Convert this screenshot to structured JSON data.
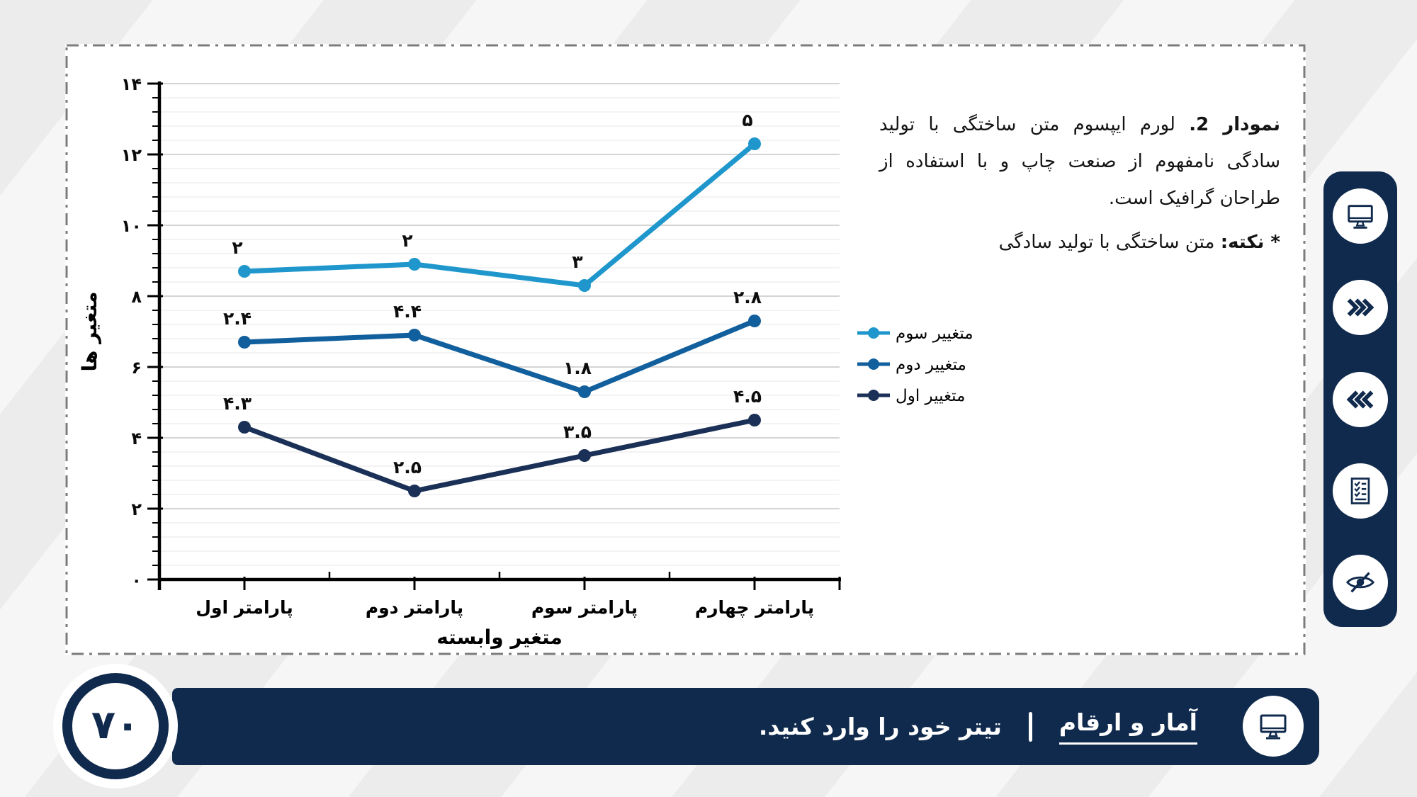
{
  "colors": {
    "navy": "#102a4d",
    "background": "#ececec",
    "panel_background": "#ffffff",
    "panel_border": "#7b7b7b",
    "grid_major": "#c6c6c6",
    "grid_minor": "#e7e7e7",
    "series_first": "#1a3056",
    "series_second": "#115f9c",
    "series_third": "#1f97cc"
  },
  "chart_data": {
    "type": "line",
    "stacked": true,
    "title": "",
    "xlabel": "متغیر وابسته",
    "ylabel": "متغیر ها",
    "categories": [
      "پارامتر اول",
      "پارامتر دوم",
      "پارامتر سوم",
      "پارامتر چهارم"
    ],
    "series": [
      {
        "name": "متغییر اول",
        "values": [
          4.3,
          2.5,
          3.5,
          4.5
        ],
        "labels": [
          "۴.۳",
          "۲.۵",
          "۳.۵",
          "۴.۵"
        ],
        "color": "#1a3056"
      },
      {
        "name": "متغییر دوم",
        "values": [
          2.4,
          4.4,
          1.8,
          2.8
        ],
        "labels": [
          "۲.۴",
          "۴.۴",
          "۱.۸",
          "۲.۸"
        ],
        "color": "#115f9c"
      },
      {
        "name": "متغییر سوم",
        "values": [
          2,
          2,
          3,
          5
        ],
        "labels": [
          "۲",
          "۲",
          "۳",
          "۵"
        ],
        "color": "#1f97cc"
      }
    ],
    "ylim": [
      0,
      14
    ],
    "y_major_step": 2,
    "y_minor_step": 0.4,
    "y_tick_labels": [
      "۰",
      "۲",
      "۴",
      "۶",
      "۸",
      "۱۰",
      "۱۲",
      "۱۴"
    ],
    "grid": true,
    "legend_position": "right",
    "legend_order_top_to_bottom": [
      "متغییر سوم",
      "متغییر دوم",
      "متغییر اول"
    ]
  },
  "caption": {
    "line1_bold": "نمودار 2.",
    "line1_rest": "لورم ایپسوم متن ساختگی با تولید",
    "line2": "سادگی نامفهوم از صنعت چاپ و با استفاده از",
    "line3": "طراحان گرافیک است.",
    "note_bold": "* نکته:",
    "note_rest": "متن ساختگی با تولید سادگی"
  },
  "sidebar": {
    "icons": [
      "monitor",
      "fast-forward",
      "rewind",
      "checklist",
      "eye-off"
    ]
  },
  "footer": {
    "section_title": "آمار و ارقام",
    "divider": "|",
    "subtitle": "تیتر خود را وارد کنید.",
    "page_number": "۷۰",
    "icon": "monitor"
  }
}
